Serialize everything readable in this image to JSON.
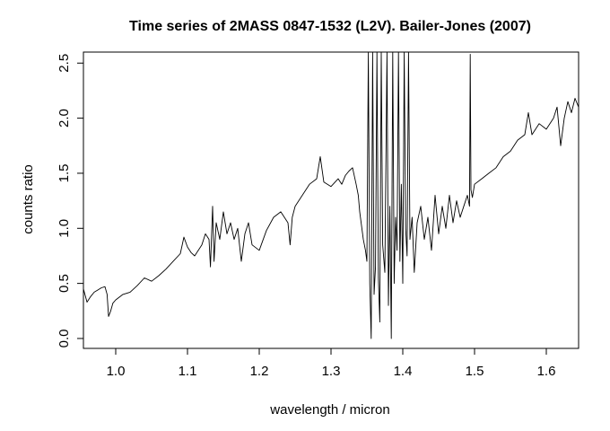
{
  "chart_data": {
    "type": "line",
    "title": "Time series of 2MASS 0847-1532 (L2V). Bailer-Jones (2007)",
    "xlabel": "wavelength / micron",
    "ylabel": "counts ratio",
    "xlim": [
      0.955,
      1.645
    ],
    "ylim": [
      -0.09,
      2.6
    ],
    "xticks": [
      "1.0",
      "1.1",
      "1.2",
      "1.3",
      "1.4",
      "1.5",
      "1.6"
    ],
    "yticks": [
      "0.0",
      "0.5",
      "1.0",
      "1.5",
      "2.0",
      "2.5"
    ],
    "grid": false,
    "legend": "none",
    "series": [
      {
        "x": [
          0.955,
          0.96,
          0.965,
          0.97,
          0.975,
          0.98,
          0.985,
          0.988,
          0.99,
          0.993,
          0.996,
          1.0,
          1.01,
          1.02,
          1.03,
          1.04,
          1.05,
          1.06,
          1.07,
          1.08,
          1.09,
          1.095,
          1.1,
          1.105,
          1.11,
          1.12,
          1.125,
          1.13,
          1.132,
          1.135,
          1.137,
          1.14,
          1.145,
          1.15,
          1.155,
          1.16,
          1.165,
          1.17,
          1.175,
          1.18,
          1.185,
          1.19,
          1.2,
          1.21,
          1.22,
          1.23,
          1.24,
          1.243,
          1.246,
          1.25,
          1.255,
          1.26,
          1.27,
          1.28,
          1.285,
          1.29,
          1.3,
          1.31,
          1.315,
          1.32,
          1.325,
          1.33,
          1.335,
          1.338,
          1.34,
          1.345,
          1.348,
          1.35,
          1.352,
          1.354,
          1.356,
          1.358,
          1.36,
          1.362,
          1.364,
          1.366,
          1.368,
          1.37,
          1.372,
          1.375,
          1.378,
          1.38,
          1.382,
          1.384,
          1.386,
          1.388,
          1.39,
          1.392,
          1.394,
          1.396,
          1.398,
          1.4,
          1.402,
          1.404,
          1.406,
          1.408,
          1.41,
          1.413,
          1.416,
          1.42,
          1.425,
          1.43,
          1.435,
          1.44,
          1.445,
          1.45,
          1.455,
          1.46,
          1.465,
          1.47,
          1.475,
          1.48,
          1.485,
          1.49,
          1.493,
          1.494,
          1.495,
          1.497,
          1.5,
          1.51,
          1.52,
          1.53,
          1.54,
          1.55,
          1.56,
          1.57,
          1.575,
          1.58,
          1.59,
          1.6,
          1.61,
          1.615,
          1.62,
          1.625,
          1.63,
          1.635,
          1.64,
          1.645
        ],
        "y": [
          0.45,
          0.33,
          0.38,
          0.42,
          0.44,
          0.46,
          0.47,
          0.4,
          0.2,
          0.25,
          0.32,
          0.35,
          0.4,
          0.42,
          0.48,
          0.55,
          0.52,
          0.57,
          0.63,
          0.7,
          0.77,
          0.92,
          0.83,
          0.78,
          0.75,
          0.85,
          0.95,
          0.9,
          0.65,
          1.2,
          0.7,
          1.05,
          0.9,
          1.15,
          0.95,
          1.05,
          0.9,
          1.0,
          0.7,
          0.95,
          1.05,
          0.85,
          0.8,
          0.98,
          1.1,
          1.15,
          1.05,
          0.85,
          1.1,
          1.2,
          1.25,
          1.3,
          1.4,
          1.45,
          1.65,
          1.42,
          1.38,
          1.45,
          1.4,
          1.48,
          1.52,
          1.55,
          1.4,
          1.3,
          1.15,
          0.9,
          0.8,
          0.7,
          2.6,
          0.5,
          0.0,
          2.6,
          0.4,
          0.65,
          2.6,
          0.55,
          0.15,
          2.6,
          0.85,
          0.6,
          2.6,
          0.3,
          1.2,
          0.0,
          2.6,
          0.5,
          1.1,
          0.8,
          2.6,
          0.7,
          1.4,
          0.5,
          2.6,
          1.0,
          0.75,
          2.6,
          0.9,
          1.1,
          0.6,
          1.05,
          1.2,
          0.9,
          1.1,
          0.8,
          1.3,
          0.95,
          1.2,
          1.0,
          1.3,
          1.05,
          1.25,
          1.1,
          1.2,
          1.3,
          1.2,
          2.58,
          1.35,
          1.28,
          1.4,
          1.45,
          1.5,
          1.55,
          1.65,
          1.7,
          1.8,
          1.85,
          2.05,
          1.85,
          1.95,
          1.9,
          2.0,
          2.1,
          1.75,
          2.0,
          2.15,
          2.05,
          2.18,
          2.1
        ]
      }
    ]
  }
}
